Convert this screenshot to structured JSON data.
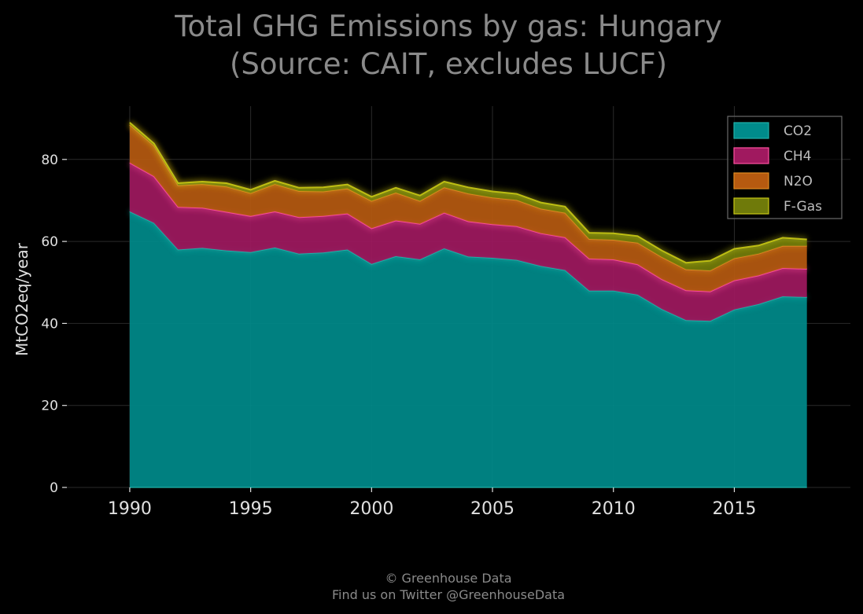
{
  "chart_data": {
    "type": "area",
    "stacked": true,
    "title": "Total GHG Emissions by gas: Hungary",
    "subtitle": "(Source: CAIT, excludes LUCF)",
    "xlabel": "",
    "ylabel": "MtCO2eq/year",
    "xlim": [
      1987.4,
      2019.8
    ],
    "ylim": [
      0,
      93
    ],
    "xticks": [
      "1990",
      "1995",
      "2000",
      "2005",
      "2010",
      "2015"
    ],
    "yticks": [
      "0",
      "20",
      "40",
      "60",
      "80"
    ],
    "grid": true,
    "legend_position": "top-right",
    "x": [
      1990,
      1991,
      1992,
      1993,
      1994,
      1995,
      1996,
      1997,
      1998,
      1999,
      2000,
      2001,
      2002,
      2003,
      2004,
      2005,
      2006,
      2007,
      2008,
      2009,
      2010,
      2011,
      2012,
      2013,
      2014,
      2015,
      2016,
      2017,
      2018
    ],
    "series": [
      {
        "name": "CO2",
        "color": "#008b8b",
        "line": "#20b2aa",
        "values": [
          67.3,
          64.5,
          58.0,
          58.4,
          57.8,
          57.4,
          58.5,
          57.0,
          57.3,
          58.0,
          54.5,
          56.4,
          55.6,
          58.3,
          56.3,
          56.0,
          55.5,
          54.0,
          53.0,
          48.0,
          48.0,
          47.0,
          43.5,
          40.8,
          40.6,
          43.4,
          44.7,
          46.6,
          46.4
        ]
      },
      {
        "name": "CH4",
        "color": "#a0195f",
        "line": "#ff4fa0",
        "values": [
          11.9,
          11.4,
          10.4,
          9.8,
          9.4,
          8.8,
          8.8,
          8.9,
          8.9,
          8.8,
          8.7,
          8.7,
          8.7,
          8.7,
          8.6,
          8.2,
          8.2,
          8.0,
          8.0,
          7.8,
          7.6,
          7.4,
          7.3,
          7.3,
          7.2,
          7.1,
          7.0,
          6.9,
          6.9
        ]
      },
      {
        "name": "N2O",
        "color": "#b65a10",
        "line": "#e08a20",
        "values": [
          9.3,
          7.5,
          5.3,
          5.8,
          6.2,
          5.6,
          6.7,
          6.4,
          6.0,
          6.1,
          6.7,
          6.8,
          5.6,
          6.2,
          6.8,
          6.5,
          6.4,
          6.0,
          6.0,
          4.8,
          4.8,
          5.3,
          5.4,
          5.1,
          5.1,
          5.4,
          5.3,
          5.4,
          5.6
        ]
      },
      {
        "name": "F-Gas",
        "color": "#6f7a0a",
        "line": "#c8c814",
        "values": [
          0.5,
          0.5,
          0.5,
          0.6,
          0.8,
          0.8,
          0.8,
          0.8,
          1.0,
          1.0,
          1.0,
          1.2,
          1.3,
          1.4,
          1.5,
          1.5,
          1.5,
          1.5,
          1.5,
          1.5,
          1.6,
          1.6,
          1.6,
          1.6,
          2.4,
          2.3,
          2.0,
          2.0,
          1.6
        ]
      }
    ]
  },
  "footer": {
    "copyright": "© Greenhouse Data",
    "twitter": "Find us on Twitter @GreenhouseData"
  }
}
